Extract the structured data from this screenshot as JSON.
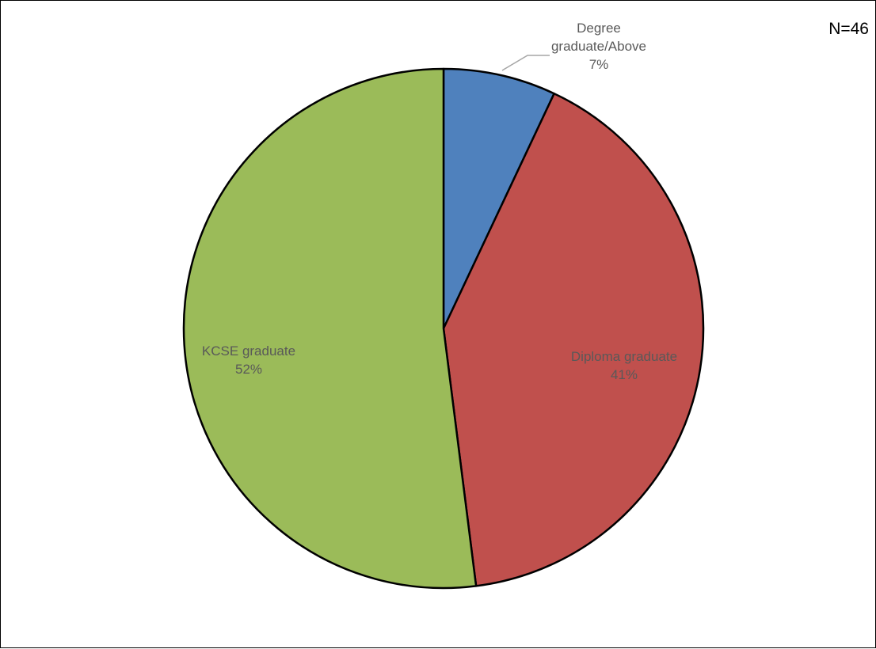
{
  "chart_data": {
    "type": "pie",
    "annotation": "N=46",
    "slices": [
      {
        "label": "Degree graduate/Above",
        "label_lines": [
          "Degree",
          "graduate/Above"
        ],
        "value": 7,
        "display": "7%",
        "color": "#4F81BD"
      },
      {
        "label": "Diploma graduate",
        "label_lines": [
          "Diploma graduate"
        ],
        "value": 41,
        "display": "41%",
        "color": "#C0504D"
      },
      {
        "label": "KCSE graduate",
        "label_lines": [
          "KCSE graduate"
        ],
        "value": 52,
        "display": "52%",
        "color": "#9BBB59"
      }
    ],
    "start": "12 o'clock",
    "direction": "clockwise",
    "legend": "none"
  }
}
